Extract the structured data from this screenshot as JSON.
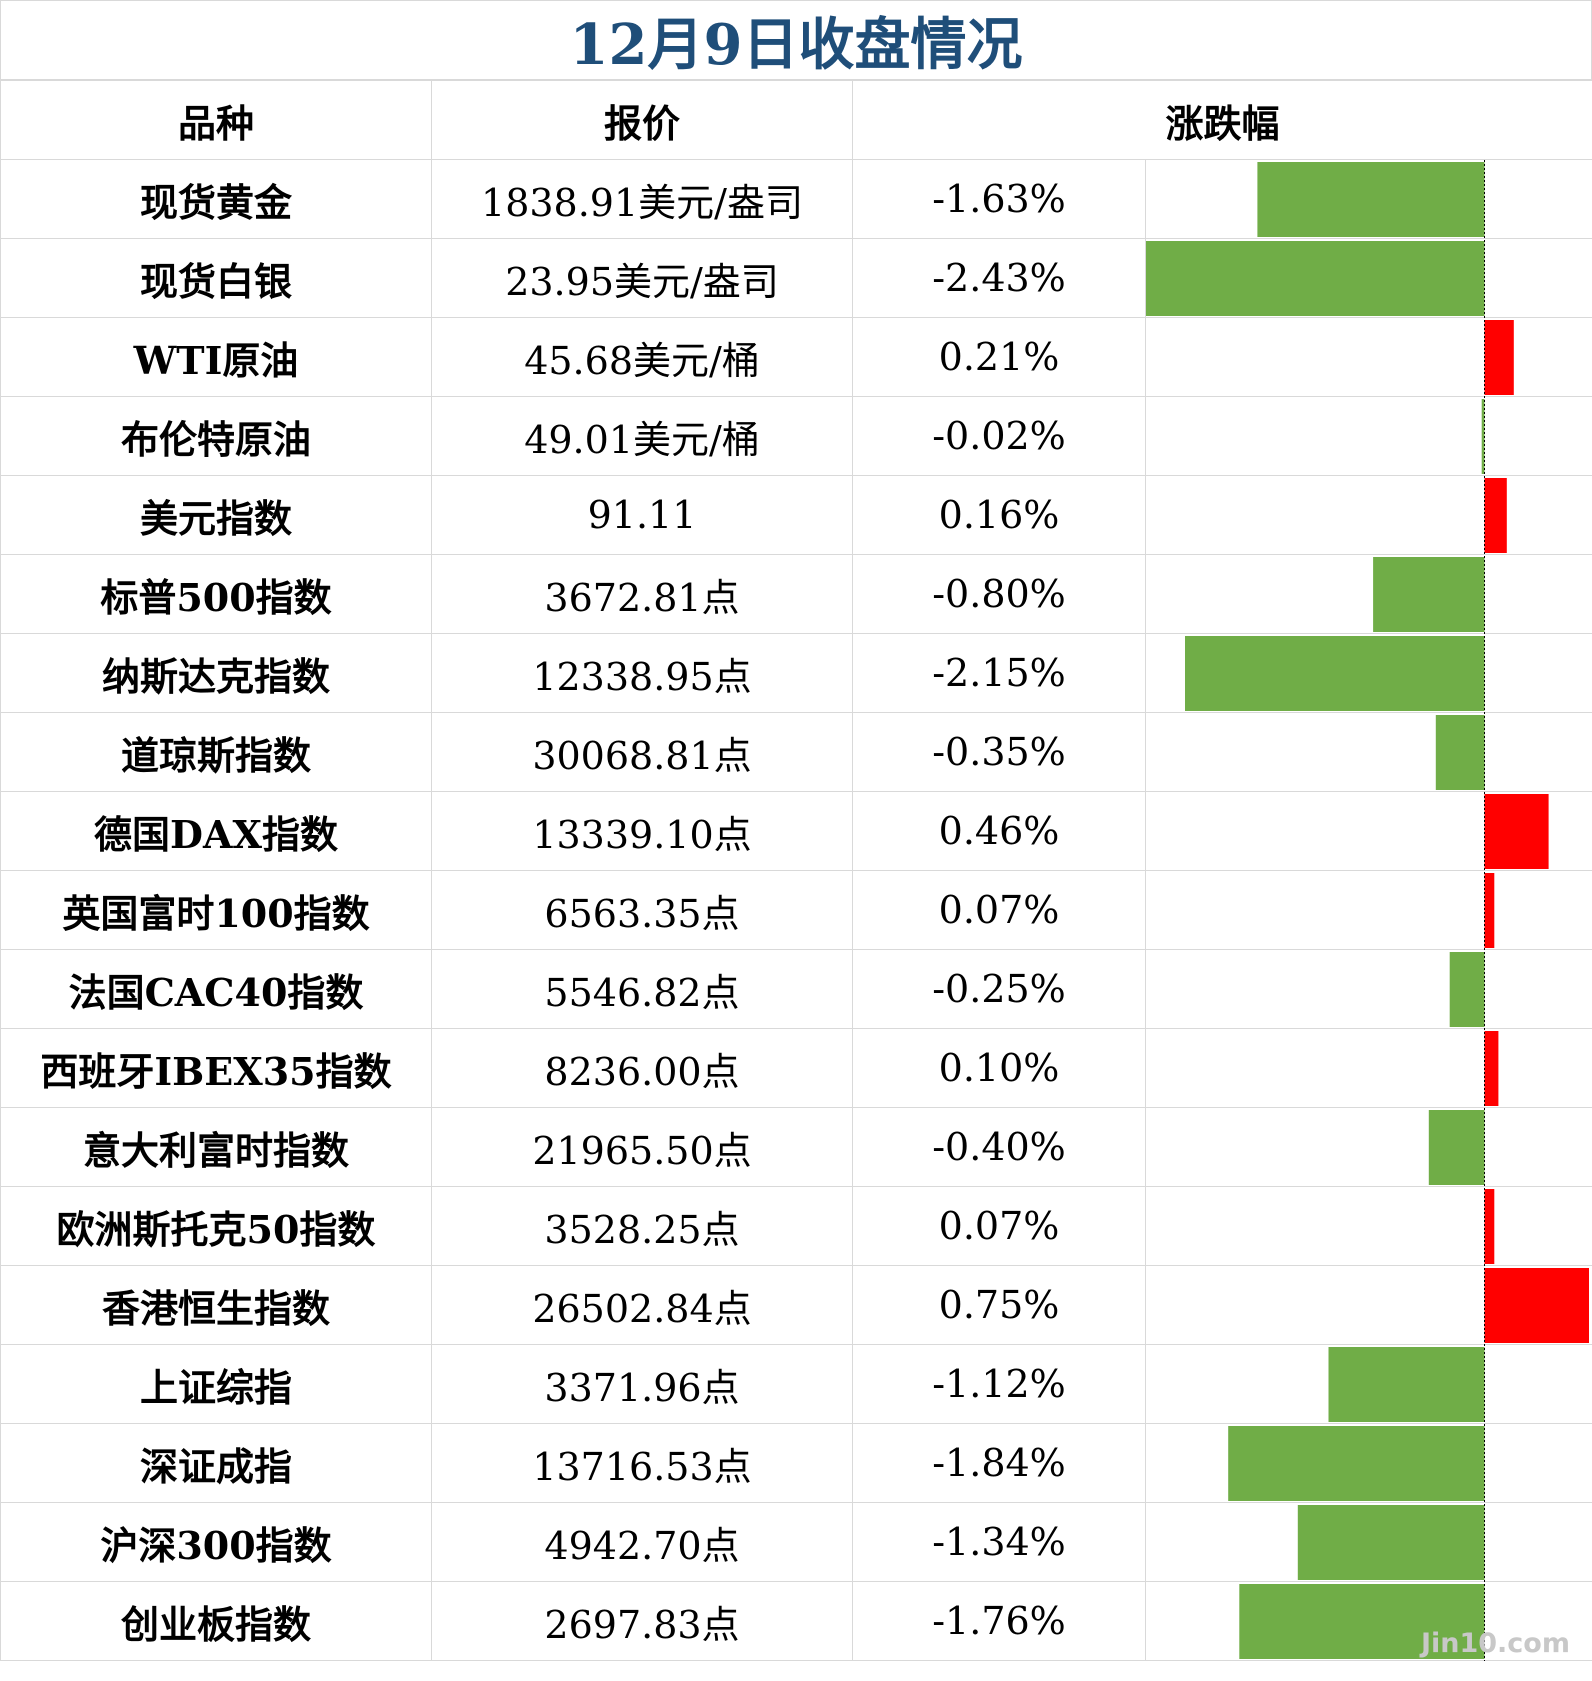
{
  "chart_data": {
    "type": "table",
    "title": "12月9日收盘情况",
    "columns": [
      "品种",
      "报价",
      "涨跌幅"
    ],
    "rows": [
      {
        "name": "现货黄金",
        "price": "1838.91美元/盎司",
        "change_label": "-1.63%",
        "change": -1.63
      },
      {
        "name": "现货白银",
        "price": "23.95美元/盎司",
        "change_label": "-2.43%",
        "change": -2.43
      },
      {
        "name": "WTI原油",
        "price": "45.68美元/桶",
        "change_label": "0.21%",
        "change": 0.21
      },
      {
        "name": "布伦特原油",
        "price": "49.01美元/桶",
        "change_label": "-0.02%",
        "change": -0.02
      },
      {
        "name": "美元指数",
        "price": "91.11",
        "change_label": "0.16%",
        "change": 0.16
      },
      {
        "name": "标普500指数",
        "price": "3672.81点",
        "change_label": "-0.80%",
        "change": -0.8
      },
      {
        "name": "纳斯达克指数",
        "price": "12338.95点",
        "change_label": "-2.15%",
        "change": -2.15
      },
      {
        "name": "道琼斯指数",
        "price": "30068.81点",
        "change_label": "-0.35%",
        "change": -0.35
      },
      {
        "name": "德国DAX指数",
        "price": "13339.10点",
        "change_label": "0.46%",
        "change": 0.46
      },
      {
        "name": "英国富时100指数",
        "price": "6563.35点",
        "change_label": "0.07%",
        "change": 0.07
      },
      {
        "name": "法国CAC40指数",
        "price": "5546.82点",
        "change_label": "-0.25%",
        "change": -0.25
      },
      {
        "name": "西班牙IBEX35指数",
        "price": "8236.00点",
        "change_label": "0.10%",
        "change": 0.1
      },
      {
        "name": "意大利富时指数",
        "price": "21965.50点",
        "change_label": "-0.40%",
        "change": -0.4
      },
      {
        "name": "欧洲斯托克50指数",
        "price": "3528.25点",
        "change_label": "0.07%",
        "change": 0.07
      },
      {
        "name": "香港恒生指数",
        "price": "26502.84点",
        "change_label": "0.75%",
        "change": 0.75
      },
      {
        "name": "上证综指",
        "price": "3371.96点",
        "change_label": "-1.12%",
        "change": -1.12
      },
      {
        "name": "深证成指",
        "price": "13716.53点",
        "change_label": "-1.84%",
        "change": -1.84
      },
      {
        "name": "沪深300指数",
        "price": "4942.70点",
        "change_label": "-1.34%",
        "change": -1.34
      },
      {
        "name": "创业板指数",
        "price": "2697.83点",
        "change_label": "-1.76%",
        "change": -1.76
      }
    ],
    "bar_range": [
      -2.43,
      0.75
    ],
    "colors": {
      "positive": "#ff0000",
      "negative": "#70ad47",
      "title": "#1f4e79",
      "grid": "#d9d9d9"
    }
  },
  "watermark": "Jin10.com"
}
